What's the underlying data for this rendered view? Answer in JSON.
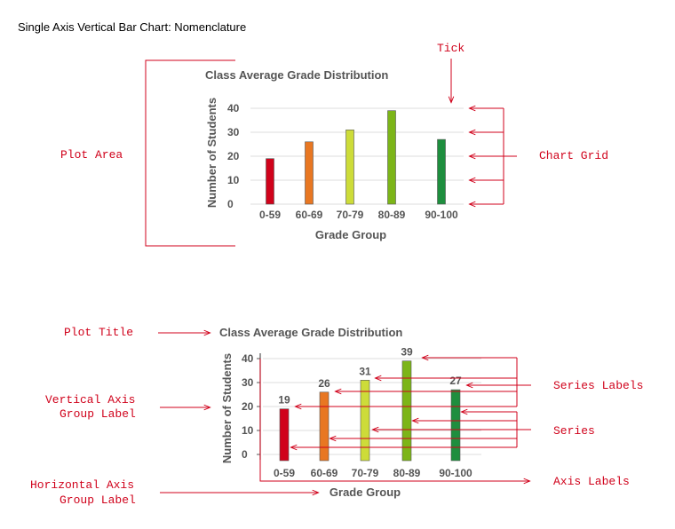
{
  "page": {
    "title": "Single Axis Vertical Bar Chart: Nomenclature"
  },
  "annotations": {
    "tick": "Tick",
    "plot_area": "Plot Area",
    "chart_grid": "Chart Grid",
    "plot_title": "Plot Title",
    "vertical_axis_group_label": [
      "Vertical Axis",
      "Group Label"
    ],
    "horizontal_axis_group_label": [
      "Horizontal Axis",
      "Group Label"
    ],
    "series_labels": "Series Labels",
    "series": "Series",
    "axis_labels": "Axis Labels"
  },
  "annotation_color": "#d0021b",
  "chart_data": [
    {
      "type": "bar",
      "title": "Class Average Grade Distribution",
      "xlabel": "Grade Group",
      "ylabel": "Number of Students",
      "categories": [
        "0-59",
        "60-69",
        "70-79",
        "80-89",
        "90-100"
      ],
      "values": [
        19,
        26,
        31,
        39,
        27
      ],
      "yticks": [
        "0",
        "10",
        "20",
        "30",
        "40"
      ],
      "ylim": [
        0,
        40
      ],
      "grid": true,
      "data_labels": false,
      "colors": [
        "#d0021b",
        "#e87722",
        "#cddc39",
        "#7cb518",
        "#1e8e3e"
      ]
    },
    {
      "type": "bar",
      "title": "Class Average Grade Distribution",
      "xlabel": "Grade Group",
      "ylabel": "Number of Students",
      "categories": [
        "0-59",
        "60-69",
        "70-79",
        "80-89",
        "90-100"
      ],
      "values": [
        19,
        26,
        31,
        39,
        27
      ],
      "data_label_text": [
        "19",
        "26",
        "31",
        "39",
        "27"
      ],
      "yticks": [
        "0",
        "10",
        "20",
        "30",
        "40"
      ],
      "ylim": [
        0,
        40
      ],
      "grid": true,
      "data_labels": true,
      "colors": [
        "#d0021b",
        "#e87722",
        "#cddc39",
        "#7cb518",
        "#1e8e3e"
      ]
    }
  ]
}
